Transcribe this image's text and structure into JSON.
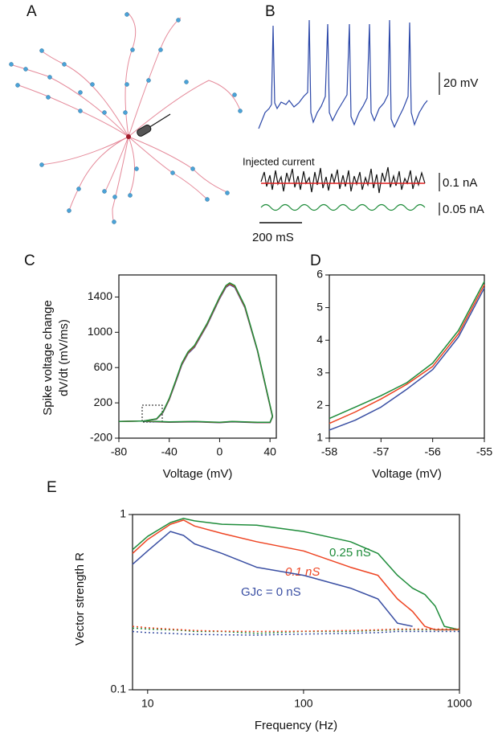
{
  "panel_labels": [
    "A",
    "B",
    "C",
    "D",
    "E"
  ],
  "panel_b": {
    "scale_voltage": "20 mV",
    "injected_label": "Injected current",
    "scale_current1": "0.1 nA",
    "scale_current2": "0.05 nA",
    "scale_time": "200 mS"
  },
  "chart_data": [
    {
      "type": "line",
      "xlabel": "Voltage (mV)",
      "ylabel": [
        "Spike voltage change",
        "dV/dt (mV/ms)"
      ],
      "xlim": [
        -80,
        45
      ],
      "xticks": [
        -80,
        -40,
        0,
        40
      ],
      "ylim": [
        -200,
        1650
      ],
      "yticks": [
        -200,
        200,
        600,
        1000,
        1400
      ],
      "x": [
        -80,
        -60,
        -50,
        -45,
        -40,
        -35,
        -30,
        -25,
        -20,
        -10,
        0,
        5,
        8,
        12,
        20,
        30,
        38,
        42,
        40,
        30,
        10,
        0,
        -20,
        -40,
        -60
      ],
      "series": [
        {
          "color": "#3a4fa3",
          "values": [
            -10,
            -5,
            15,
            90,
            235,
            430,
            630,
            760,
            830,
            1080,
            1380,
            1510,
            1540,
            1510,
            1280,
            790,
            290,
            40,
            -25,
            -25,
            -15,
            -25,
            -15,
            -20,
            -10
          ]
        },
        {
          "color": "#ee4422",
          "values": [
            -10,
            -5,
            18,
            95,
            242,
            440,
            640,
            770,
            840,
            1090,
            1390,
            1520,
            1550,
            1520,
            1290,
            795,
            295,
            45,
            -22,
            -22,
            -12,
            -22,
            -12,
            -18,
            -8
          ]
        },
        {
          "color": "#1e8c3a",
          "values": [
            -10,
            -5,
            20,
            100,
            250,
            450,
            650,
            780,
            850,
            1100,
            1400,
            1530,
            1560,
            1530,
            1300,
            800,
            300,
            50,
            -20,
            -20,
            -10,
            -20,
            -10,
            -15,
            -5
          ]
        }
      ]
    },
    {
      "type": "line",
      "xlabel": "Voltage (mV)",
      "xlim": [
        -58,
        -55
      ],
      "xticks": [
        -58,
        -57,
        -56,
        -55
      ],
      "ylim": [
        1,
        6
      ],
      "yticks": [
        1,
        2,
        3,
        4,
        5,
        6
      ],
      "x": [
        -58,
        -57.5,
        -57,
        -56.5,
        -56,
        -55.5,
        -55
      ],
      "series": [
        {
          "color": "#3a4fa3",
          "values": [
            1.25,
            1.55,
            1.95,
            2.5,
            3.1,
            4.1,
            5.6
          ]
        },
        {
          "color": "#ee4422",
          "values": [
            1.45,
            1.8,
            2.2,
            2.65,
            3.2,
            4.2,
            5.7
          ]
        },
        {
          "color": "#1e8c3a",
          "values": [
            1.6,
            1.95,
            2.3,
            2.7,
            3.3,
            4.3,
            5.8
          ]
        }
      ]
    },
    {
      "type": "line",
      "xscale": "log",
      "yscale": "log",
      "xlabel": "Frequency (Hz)",
      "ylabel": "Vector strength R",
      "xlim": [
        8,
        1000
      ],
      "xticks": [
        10,
        100,
        1000
      ],
      "ylim": [
        0.1,
        1
      ],
      "yticks": [
        0.1,
        1
      ],
      "x": [
        8,
        10,
        14,
        17,
        20,
        30,
        50,
        100,
        200,
        300,
        400,
        500,
        600,
        700,
        800,
        1000
      ],
      "series": [
        {
          "name": "0.25 nS",
          "color": "#1e8c3a",
          "values": [
            0.63,
            0.75,
            0.9,
            0.95,
            0.92,
            0.88,
            0.87,
            0.8,
            0.7,
            0.6,
            0.45,
            0.38,
            0.35,
            0.3,
            0.23,
            0.22
          ]
        },
        {
          "name": "0.1 nS",
          "color": "#ee4422",
          "values": [
            0.6,
            0.72,
            0.88,
            0.93,
            0.86,
            0.78,
            0.7,
            0.62,
            0.5,
            0.45,
            0.33,
            0.28,
            0.23,
            0.22,
            0.22,
            0.22
          ]
        },
        {
          "name": "GJc =  0 nS",
          "color": "#3a4fa3",
          "values": [
            0.52,
            0.62,
            0.8,
            0.76,
            0.68,
            0.6,
            0.5,
            0.45,
            0.38,
            0.33,
            0.24,
            0.23,
            null,
            null,
            null,
            null
          ]
        },
        {
          "color": "#1e8c3a",
          "dash": true,
          "values": [
            0.225,
            0.222,
            0.22,
            0.218,
            0.215,
            0.215,
            0.21,
            0.215,
            0.215,
            0.218,
            0.22,
            0.22,
            0.22,
            0.22,
            0.22,
            0.22
          ]
        },
        {
          "color": "#ee4422",
          "dash": true,
          "values": [
            0.23,
            0.226,
            0.222,
            0.22,
            0.218,
            0.216,
            0.215,
            0.216,
            0.218,
            0.22,
            0.222,
            0.222,
            0.222,
            0.222,
            0.222,
            0.222
          ]
        },
        {
          "color": "#3a4fa3",
          "dash": true,
          "values": [
            0.215,
            0.212,
            0.21,
            0.208,
            0.207,
            0.206,
            0.205,
            0.208,
            0.21,
            0.212,
            0.215,
            0.215,
            0.215,
            0.215,
            0.215,
            0.215
          ]
        }
      ]
    }
  ]
}
